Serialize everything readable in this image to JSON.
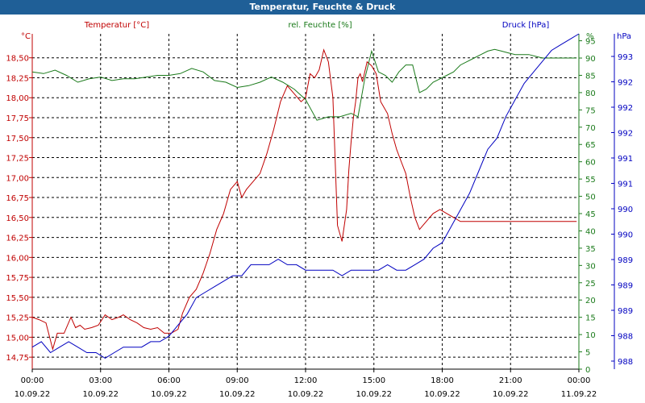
{
  "window": {
    "title": "Temperatur, Feuchte & Druck"
  },
  "legend": {
    "temperature": "Temperatur [°C]",
    "humidity": "rel. Feuchte [%]",
    "pressure": "Druck [hPa]"
  },
  "colors": {
    "temperature": "#c00000",
    "humidity": "#1a7a1a",
    "pressure": "#0000c0",
    "grid": "#000000",
    "title_bar": "#1f5f97"
  },
  "chart_data": {
    "type": "line",
    "title": "Temperatur, Feuchte & Druck",
    "grid": true,
    "x_ticks": [
      {
        "time": "00:00",
        "date": "10.09.22"
      },
      {
        "time": "03:00",
        "date": "10.09.22"
      },
      {
        "time": "06:00",
        "date": "10.09.22"
      },
      {
        "time": "09:00",
        "date": "10.09.22"
      },
      {
        "time": "12:00",
        "date": "10.09.22"
      },
      {
        "time": "15:00",
        "date": "10.09.22"
      },
      {
        "time": "18:00",
        "date": "10.09.22"
      },
      {
        "time": "21:00",
        "date": "10.09.22"
      },
      {
        "time": "00:00",
        "date": "11.09.22"
      }
    ],
    "xlim": [
      0,
      24
    ],
    "axes": {
      "left": {
        "unit": "°C",
        "range": [
          14.6,
          18.8
        ],
        "ticks": [
          "14,75",
          "15,00",
          "15,25",
          "15,50",
          "15,75",
          "16,00",
          "16,25",
          "16,50",
          "16,75",
          "17,00",
          "17,25",
          "17,50",
          "17,75",
          "18,00",
          "18,25",
          "18,50"
        ]
      },
      "middle": {
        "unit": "%",
        "range": [
          0,
          97
        ],
        "ticks": [
          "0",
          "5",
          "10",
          "15",
          "20",
          "25",
          "30",
          "35",
          "40",
          "45",
          "50",
          "55",
          "60",
          "65",
          "70",
          "75",
          "80",
          "85",
          "90",
          "95"
        ]
      },
      "right": {
        "unit": "hPa",
        "range": [
          987.6,
          993.7
        ],
        "ticks": [
          "988",
          "988",
          "989",
          "989",
          "989",
          "990",
          "990",
          "991",
          "991",
          "992",
          "992",
          "992",
          "993"
        ]
      }
    },
    "series": [
      {
        "name": "Temperatur [°C]",
        "axis": "left",
        "x": [
          0,
          0.3,
          0.6,
          0.9,
          1.1,
          1.4,
          1.7,
          1.9,
          2.1,
          2.3,
          2.6,
          2.9,
          3.2,
          3.5,
          3.8,
          4.0,
          4.3,
          4.6,
          4.9,
          5.2,
          5.5,
          5.8,
          6.1,
          6.4,
          6.6,
          6.9,
          7.2,
          7.5,
          7.8,
          8.1,
          8.4,
          8.7,
          9.0,
          9.2,
          9.4,
          9.7,
          10.0,
          10.3,
          10.6,
          10.9,
          11.2,
          11.5,
          11.8,
          12.0,
          12.2,
          12.4,
          12.6,
          12.8,
          13.0,
          13.2,
          13.4,
          13.6,
          13.8,
          13.9,
          14.0,
          14.1,
          14.2,
          14.3,
          14.4,
          14.5,
          14.7,
          14.9,
          15.1,
          15.3,
          15.6,
          15.8,
          16.0,
          16.2,
          16.4,
          16.6,
          16.8,
          17.0,
          17.3,
          17.6,
          17.9,
          18.2,
          18.5,
          18.8,
          19.1,
          19.4,
          19.7,
          20.0,
          20.3,
          20.6,
          20.9,
          21.2,
          21.5,
          21.8,
          22.1,
          22.4,
          22.7,
          23.0,
          23.3,
          23.6,
          23.9
        ],
        "values": [
          15.25,
          15.22,
          15.18,
          14.85,
          15.05,
          15.05,
          15.25,
          15.12,
          15.15,
          15.1,
          15.12,
          15.15,
          15.28,
          15.22,
          15.25,
          15.28,
          15.22,
          15.18,
          15.12,
          15.1,
          15.12,
          15.05,
          15.05,
          15.1,
          15.3,
          15.5,
          15.6,
          15.8,
          16.05,
          16.35,
          16.55,
          16.85,
          16.95,
          16.75,
          16.85,
          16.95,
          17.05,
          17.3,
          17.6,
          17.95,
          18.15,
          18.05,
          17.95,
          18.0,
          18.3,
          18.25,
          18.35,
          18.6,
          18.45,
          18.0,
          16.4,
          16.2,
          16.6,
          17.1,
          17.45,
          17.75,
          17.95,
          18.25,
          18.3,
          18.2,
          18.45,
          18.4,
          18.3,
          17.95,
          17.8,
          17.55,
          17.35,
          17.2,
          17.05,
          16.75,
          16.5,
          16.35,
          16.45,
          16.55,
          16.6,
          16.55,
          16.5,
          16.45,
          16.45,
          16.45,
          16.45,
          16.45,
          16.45,
          16.45,
          16.45,
          16.45,
          16.45,
          16.45,
          16.45,
          16.45,
          16.45,
          16.45,
          16.45,
          16.45,
          16.45
        ],
        "color": "#c00000"
      },
      {
        "name": "rel. Feuchte [%]",
        "axis": "middle",
        "x": [
          0,
          0.5,
          1.0,
          1.5,
          2.0,
          2.5,
          3.0,
          3.5,
          4.0,
          4.5,
          5.0,
          5.5,
          6.0,
          6.5,
          7.0,
          7.5,
          8.0,
          8.5,
          9.0,
          9.5,
          10.0,
          10.5,
          11.0,
          11.5,
          12.0,
          12.5,
          13.0,
          13.5,
          14.0,
          14.3,
          14.6,
          14.9,
          15.2,
          15.5,
          15.8,
          16.1,
          16.4,
          16.7,
          17.0,
          17.3,
          17.6,
          17.9,
          18.2,
          18.5,
          18.8,
          19.1,
          19.4,
          19.7,
          20.0,
          20.3,
          20.6,
          20.9,
          21.2,
          21.5,
          21.8,
          22.1,
          22.4,
          22.7,
          23.0,
          23.3,
          23.6,
          23.9
        ],
        "values": [
          86,
          85.5,
          86.5,
          85,
          83,
          84,
          84.5,
          83.5,
          84,
          84,
          84.5,
          85,
          85,
          85.5,
          87,
          86,
          83.5,
          83,
          81.5,
          82,
          83,
          84.5,
          83,
          81,
          78,
          72,
          73,
          73,
          74,
          73,
          84,
          92,
          86,
          85,
          83,
          86,
          88,
          88,
          80,
          81,
          83,
          84,
          85,
          86,
          88,
          89,
          90,
          91,
          92,
          92.5,
          92,
          91.5,
          91,
          91,
          91,
          90.5,
          90,
          90,
          90,
          90,
          90,
          90
        ],
        "color": "#1a7a1a"
      },
      {
        "name": "Druck [hPa]",
        "axis": "right",
        "x": [
          0,
          0.4,
          0.8,
          1.2,
          1.6,
          2.0,
          2.4,
          2.8,
          3.2,
          3.6,
          4.0,
          4.4,
          4.8,
          5.2,
          5.6,
          6.0,
          6.4,
          6.8,
          7.2,
          7.6,
          8.0,
          8.4,
          8.8,
          9.2,
          9.6,
          10.0,
          10.4,
          10.8,
          11.2,
          11.6,
          12.0,
          12.4,
          12.8,
          13.2,
          13.6,
          14.0,
          14.4,
          14.8,
          15.2,
          15.6,
          16.0,
          16.4,
          16.8,
          17.2,
          17.6,
          18.0,
          18.4,
          18.8,
          19.2,
          19.6,
          20.0,
          20.4,
          20.8,
          21.2,
          21.6,
          22.0,
          22.4,
          22.8,
          23.2,
          23.6,
          24.0
        ],
        "values": [
          988.0,
          988.1,
          987.9,
          988.0,
          988.1,
          988.0,
          987.9,
          987.9,
          987.8,
          987.9,
          988.0,
          988.0,
          988.0,
          988.1,
          988.1,
          988.2,
          988.4,
          988.6,
          988.9,
          989.0,
          989.1,
          989.2,
          989.3,
          989.3,
          989.5,
          989.5,
          989.5,
          989.6,
          989.5,
          989.5,
          989.4,
          989.4,
          989.4,
          989.4,
          989.3,
          989.4,
          989.4,
          989.4,
          989.4,
          989.5,
          989.4,
          989.4,
          989.5,
          989.6,
          989.8,
          989.9,
          990.2,
          990.5,
          990.8,
          991.2,
          991.6,
          991.8,
          992.2,
          992.5,
          992.8,
          993.0,
          993.2,
          993.4,
          993.5,
          993.6,
          993.7
        ],
        "color": "#0000c0"
      }
    ]
  }
}
